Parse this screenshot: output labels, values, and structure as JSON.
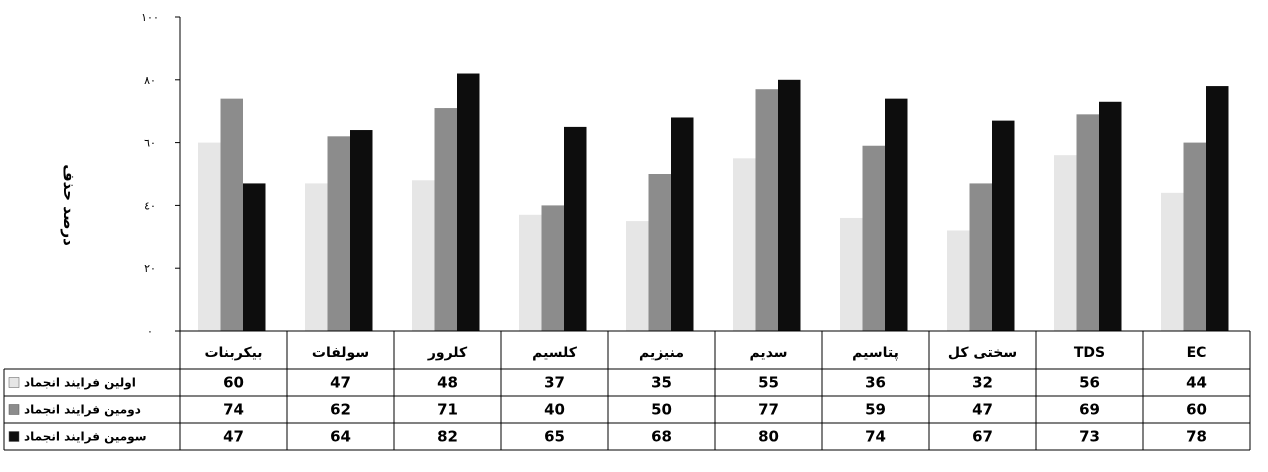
{
  "chart_data": {
    "type": "bar",
    "ylabel": "درصد حذف",
    "ylim": [
      0,
      100
    ],
    "yticks": [
      "٠",
      "٢٠",
      "٤٠",
      "٦٠",
      "٨٠",
      "١٠٠"
    ],
    "grid": false,
    "legend_placement": "data-table-left",
    "categories": [
      "بیکربنات",
      "سولفات",
      "کلرور",
      "کلسیم",
      "منیزیم",
      "سدیم",
      "پتاسیم",
      "سختی کل",
      "TDS",
      "EC"
    ],
    "series": [
      {
        "name": "اولین فرایند انجماد",
        "color": "#e6e6e6",
        "values": [
          60,
          47,
          48,
          37,
          35,
          55,
          36,
          32,
          56,
          44
        ]
      },
      {
        "name": "دومین فرایند انجماد",
        "color": "#8c8c8c",
        "values": [
          74,
          62,
          71,
          40,
          50,
          77,
          59,
          47,
          69,
          60
        ]
      },
      {
        "name": "سومین فرایند انجماد",
        "color": "#0d0d0d",
        "values": [
          47,
          64,
          82,
          65,
          68,
          80,
          74,
          67,
          73,
          78
        ]
      }
    ]
  }
}
